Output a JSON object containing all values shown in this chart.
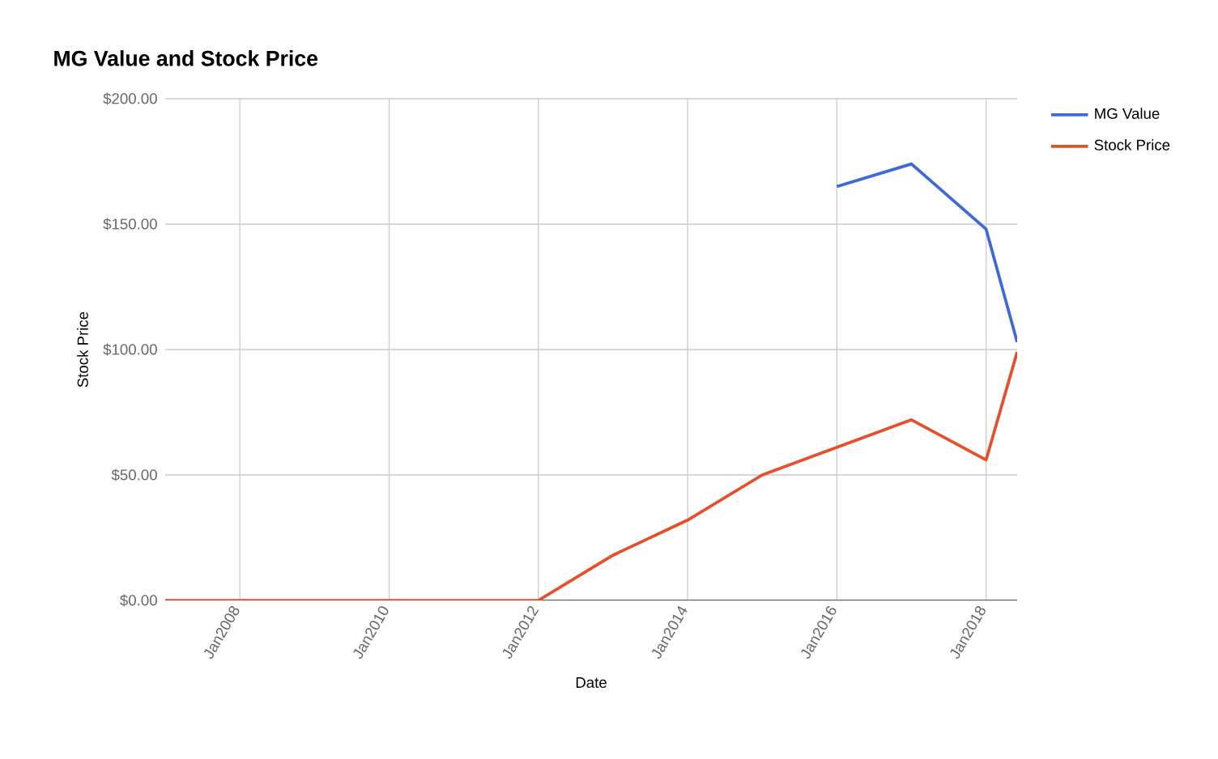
{
  "chart_data": {
    "type": "line",
    "title": "MG Value and Stock Price",
    "xlabel": "Date",
    "ylabel": "Stock Price",
    "series": [
      {
        "name": "MG Value",
        "color": "#3d6ad6",
        "x": [
          "2016-01",
          "2017-01",
          "2018-01",
          "2018-06"
        ],
        "values": [
          165,
          174,
          148,
          103
        ]
      },
      {
        "name": "Stock Price",
        "color": "#e5502b",
        "x": [
          "2007-01",
          "2008-01",
          "2009-01",
          "2010-01",
          "2011-01",
          "2012-01",
          "2013-01",
          "2014-01",
          "2015-01",
          "2016-01",
          "2017-01",
          "2018-01",
          "2018-06"
        ],
        "values": [
          0,
          0,
          0,
          0,
          0,
          0,
          18,
          32,
          50,
          61,
          72,
          56,
          99
        ]
      }
    ],
    "xlim": [
      "2007-01",
      "2018-06"
    ],
    "xticks": [
      {
        "value": "2008-01",
        "label": "Jan2008"
      },
      {
        "value": "2010-01",
        "label": "Jan2010"
      },
      {
        "value": "2012-01",
        "label": "Jan2012"
      },
      {
        "value": "2014-01",
        "label": "Jan2014"
      },
      {
        "value": "2016-01",
        "label": "Jan2016"
      },
      {
        "value": "2018-01",
        "label": "Jan2018"
      }
    ],
    "ylim": [
      0,
      200
    ],
    "yticks": [
      {
        "value": 0,
        "label": "$0.00"
      },
      {
        "value": 50,
        "label": "$50.00"
      },
      {
        "value": 100,
        "label": "$100.00"
      },
      {
        "value": 150,
        "label": "$150.00"
      },
      {
        "value": 200,
        "label": "$200.00"
      }
    ],
    "grid": true,
    "legend": "top right",
    "marker": "none",
    "line_style": "solid"
  }
}
